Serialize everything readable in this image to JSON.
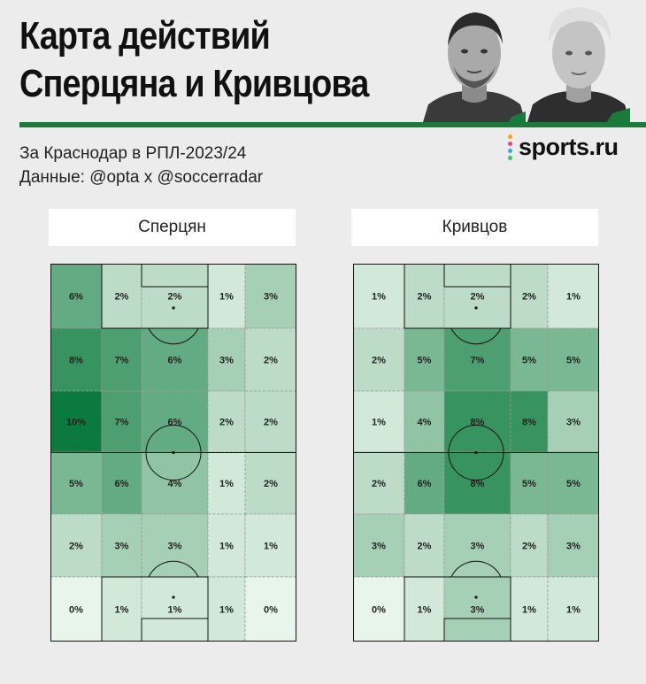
{
  "header": {
    "title_line1": "Карта действий",
    "title_line2": "Сперцяна и Кривцова",
    "subtitle_line1": "За Краснодар в РПЛ-2023/24",
    "subtitle_line2": "Данные: @opta x @soccerradar",
    "brand": "sports.ru"
  },
  "colors": {
    "accent": "#1a7a3a",
    "heat_low": "#e8f5ea",
    "heat_high": "#0b7a3e",
    "brand_dots": [
      "#f5a623",
      "#e04b7a",
      "#3aa6e0",
      "#3cc46a"
    ]
  },
  "chart_data": [
    {
      "type": "heatmap",
      "title": "Сперцян",
      "unit": "%",
      "rows": 6,
      "cols": 5,
      "row_order": "top to bottom",
      "values": [
        [
          6,
          2,
          2,
          1,
          3
        ],
        [
          8,
          7,
          6,
          3,
          2
        ],
        [
          10,
          7,
          6,
          2,
          2
        ],
        [
          5,
          6,
          4,
          1,
          2
        ],
        [
          2,
          3,
          3,
          1,
          1
        ],
        [
          0,
          1,
          1,
          1,
          0
        ]
      ]
    },
    {
      "type": "heatmap",
      "title": "Кривцов",
      "unit": "%",
      "rows": 6,
      "cols": 5,
      "row_order": "top to bottom",
      "values": [
        [
          1,
          2,
          2,
          2,
          1
        ],
        [
          2,
          5,
          7,
          5,
          5
        ],
        [
          1,
          4,
          8,
          8,
          3
        ],
        [
          2,
          6,
          8,
          5,
          5
        ],
        [
          3,
          2,
          3,
          2,
          3
        ],
        [
          0,
          1,
          3,
          1,
          1
        ]
      ]
    }
  ]
}
